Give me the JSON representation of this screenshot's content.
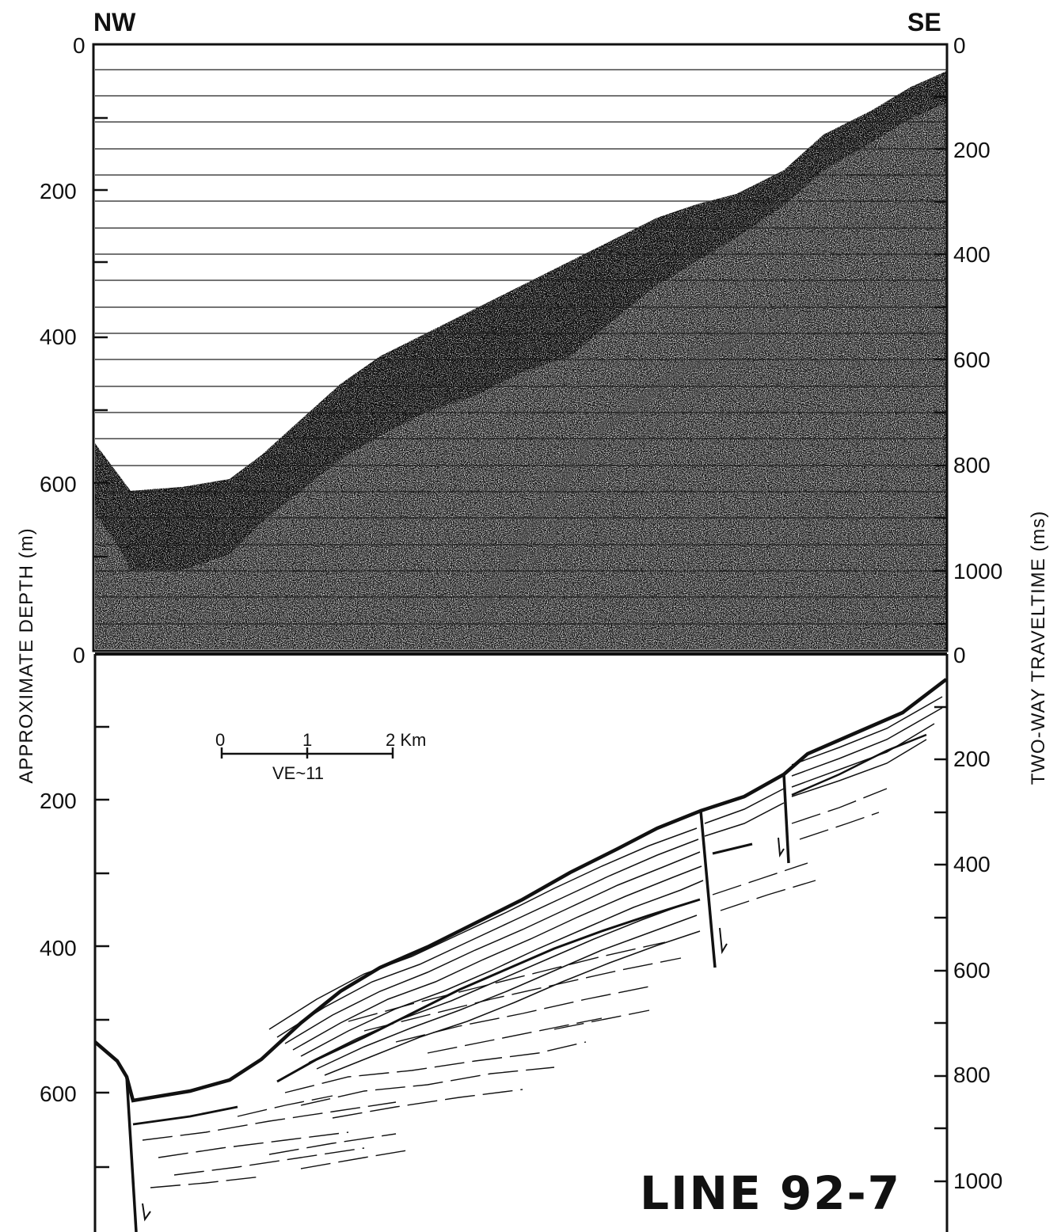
{
  "orientation": {
    "left": "NW",
    "right": "SE"
  },
  "left_axis": {
    "label": "APPROXIMATE DEPTH (m)",
    "upper_ticks": [
      "0",
      "200",
      "400",
      "600",
      "0"
    ],
    "lower_ticks": [
      "200",
      "400",
      "600"
    ]
  },
  "right_axis": {
    "label": "TWO-WAY TRAVELTIME (ms)",
    "upper_ticks": [
      "0",
      "200",
      "400",
      "600",
      "800",
      "1000",
      "0"
    ],
    "lower_ticks": [
      "200",
      "400",
      "600",
      "800",
      "1000"
    ]
  },
  "scale_bar": {
    "labels": [
      "0",
      "1",
      "2 Km"
    ],
    "vertical_exaggeration": "VE~11"
  },
  "line_title": "LINE 92-7",
  "panels": {
    "upper": "seismic-profile",
    "lower": "line-drawing-interpretation"
  }
}
